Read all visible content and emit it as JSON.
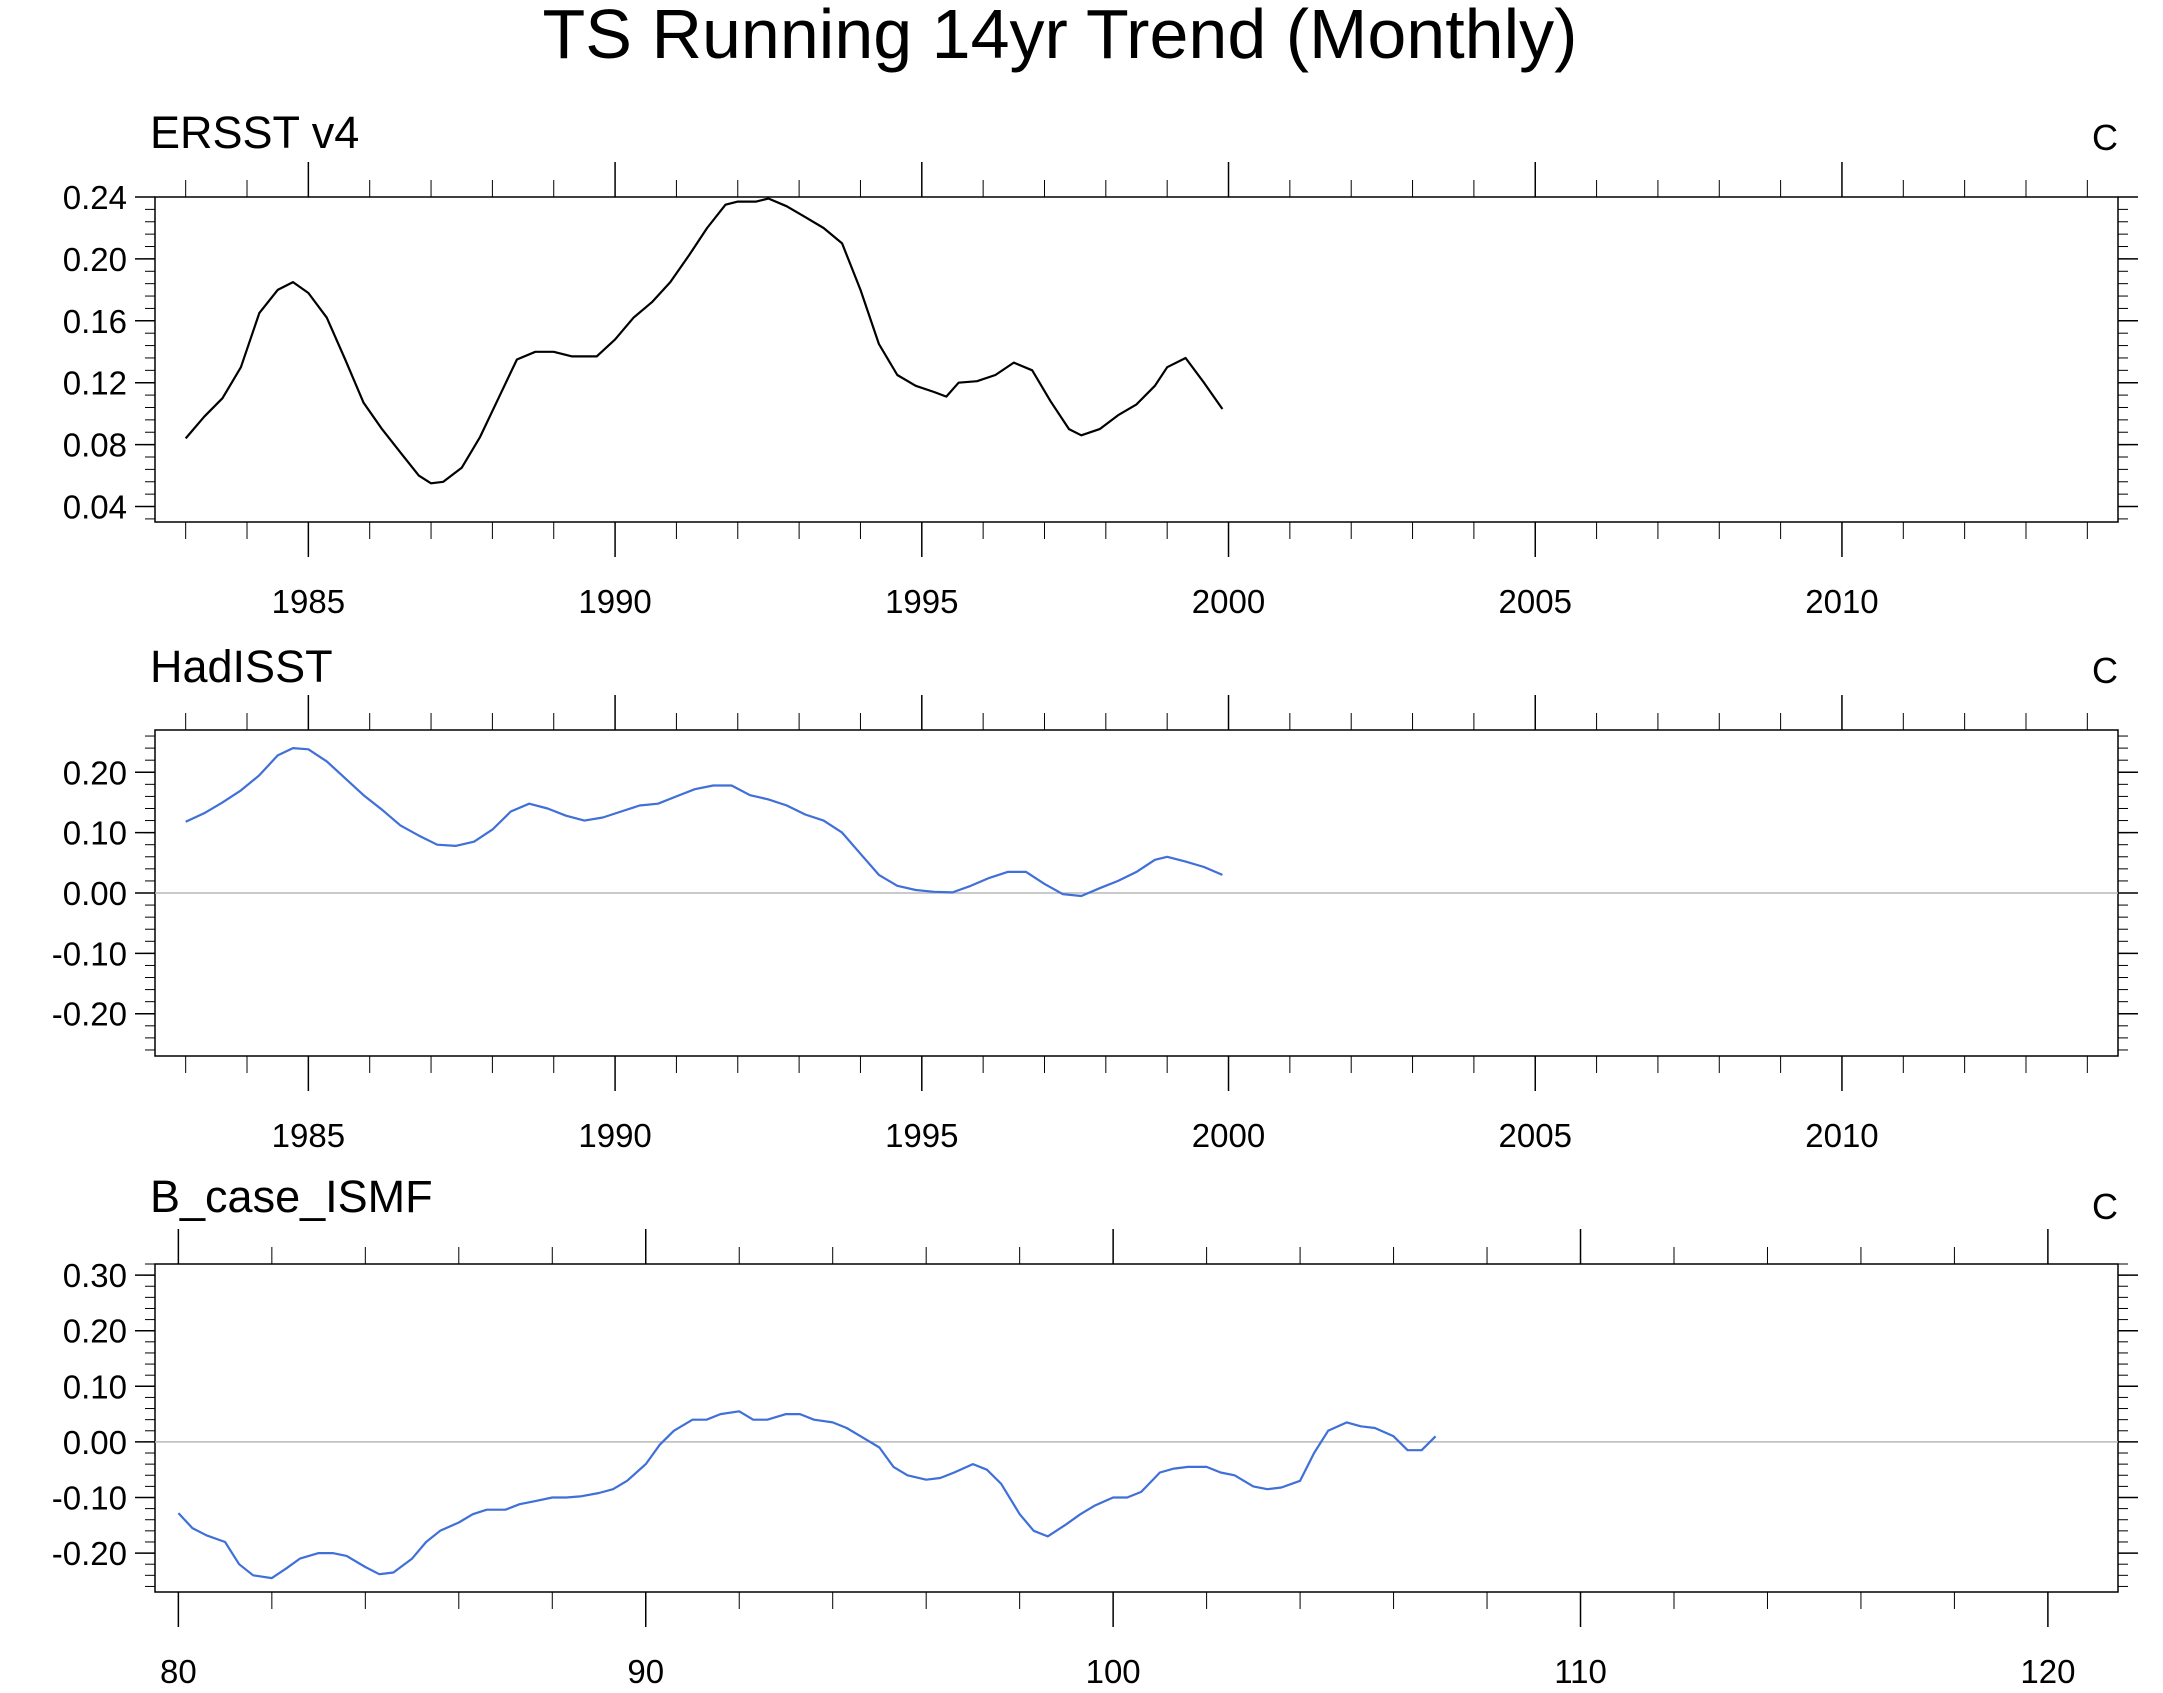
{
  "title": "TS Running 14yr Trend (Monthly)",
  "chart_data": [
    {
      "type": "line",
      "title": "ERSST v4",
      "units": "C",
      "xlim": [
        1982.5,
        2014.5
      ],
      "xticks": [
        1985,
        1990,
        1995,
        2000,
        2005,
        2010
      ],
      "xtick_labels": [
        "1985",
        "1990",
        "1995",
        "2000",
        "2005",
        "2010"
      ],
      "ylim": [
        0.03,
        0.24
      ],
      "yticks": [
        0.04,
        0.08,
        0.12,
        0.16,
        0.2,
        0.24
      ],
      "ytick_labels": [
        "0.04",
        "0.08",
        "0.12",
        "0.16",
        "0.20",
        "0.24"
      ],
      "reference_line": null,
      "series": [
        {
          "color": "#000000",
          "x": [
            1983.0,
            1983.3,
            1983.6,
            1983.9,
            1984.2,
            1984.5,
            1984.75,
            1985.0,
            1985.3,
            1985.6,
            1985.9,
            1986.2,
            1986.5,
            1986.8,
            1987.0,
            1987.2,
            1987.5,
            1987.8,
            1988.1,
            1988.4,
            1988.7,
            1989.0,
            1989.3,
            1989.7,
            1990.0,
            1990.3,
            1990.6,
            1990.9,
            1991.2,
            1991.5,
            1991.8,
            1992.0,
            1992.3,
            1992.5,
            1992.8,
            1993.1,
            1993.4,
            1993.7,
            1994.0,
            1994.3,
            1994.6,
            1994.9,
            1995.2,
            1995.4,
            1995.6,
            1995.9,
            1996.2,
            1996.5,
            1996.8,
            1997.1,
            1997.4,
            1997.6,
            1997.9,
            1998.2,
            1998.5,
            1998.8,
            1999.0,
            1999.3,
            1999.6,
            1999.9
          ],
          "y": [
            0.084,
            0.098,
            0.11,
            0.13,
            0.165,
            0.18,
            0.185,
            0.178,
            0.162,
            0.135,
            0.107,
            0.09,
            0.075,
            0.06,
            0.055,
            0.056,
            0.065,
            0.085,
            0.11,
            0.135,
            0.14,
            0.14,
            0.137,
            0.137,
            0.148,
            0.162,
            0.172,
            0.185,
            0.202,
            0.22,
            0.235,
            0.237,
            0.237,
            0.239,
            0.234,
            0.227,
            0.22,
            0.21,
            0.18,
            0.145,
            0.125,
            0.118,
            0.114,
            0.111,
            0.12,
            0.121,
            0.125,
            0.133,
            0.128,
            0.108,
            0.09,
            0.086,
            0.09,
            0.099,
            0.106,
            0.118,
            0.13,
            0.136,
            0.12,
            0.103
          ]
        }
      ]
    },
    {
      "type": "line",
      "title": "HadISST",
      "units": "C",
      "xlim": [
        1982.5,
        2014.5
      ],
      "xticks": [
        1985,
        1990,
        1995,
        2000,
        2005,
        2010
      ],
      "xtick_labels": [
        "1985",
        "1990",
        "1995",
        "2000",
        "2005",
        "2010"
      ],
      "ylim": [
        -0.27,
        0.27
      ],
      "yticks": [
        -0.2,
        -0.1,
        0.0,
        0.1,
        0.2
      ],
      "ytick_labels": [
        "-0.20",
        "-0.10",
        "0.00",
        "0.10",
        "0.20"
      ],
      "reference_line": 0,
      "series": [
        {
          "color": "#3f6fd8",
          "x": [
            1983.0,
            1983.3,
            1983.6,
            1983.9,
            1984.2,
            1984.5,
            1984.75,
            1985.0,
            1985.3,
            1985.6,
            1985.9,
            1986.2,
            1986.5,
            1986.8,
            1987.1,
            1987.4,
            1987.7,
            1988.0,
            1988.3,
            1988.6,
            1988.9,
            1989.2,
            1989.5,
            1989.8,
            1990.1,
            1990.4,
            1990.7,
            1991.0,
            1991.3,
            1991.6,
            1991.9,
            1992.2,
            1992.5,
            1992.8,
            1993.1,
            1993.4,
            1993.7,
            1994.0,
            1994.3,
            1994.6,
            1994.9,
            1995.2,
            1995.5,
            1995.8,
            1996.1,
            1996.4,
            1996.7,
            1997.0,
            1997.3,
            1997.6,
            1997.9,
            1998.2,
            1998.5,
            1998.8,
            1999.0,
            1999.3,
            1999.6,
            1999.9
          ],
          "y": [
            0.118,
            0.132,
            0.15,
            0.17,
            0.195,
            0.228,
            0.24,
            0.238,
            0.218,
            0.19,
            0.162,
            0.138,
            0.112,
            0.095,
            0.08,
            0.078,
            0.085,
            0.105,
            0.135,
            0.148,
            0.14,
            0.128,
            0.12,
            0.125,
            0.135,
            0.145,
            0.148,
            0.16,
            0.172,
            0.178,
            0.178,
            0.162,
            0.155,
            0.145,
            0.13,
            0.12,
            0.1,
            0.065,
            0.03,
            0.012,
            0.005,
            0.002,
            0.001,
            0.012,
            0.025,
            0.035,
            0.035,
            0.015,
            -0.002,
            -0.005,
            0.008,
            0.02,
            0.035,
            0.055,
            0.06,
            0.052,
            0.043,
            0.03
          ]
        }
      ]
    },
    {
      "type": "line",
      "title": "B_case_ISMF",
      "units": "C",
      "xlim": [
        79.5,
        121.5
      ],
      "xticks": [
        80,
        90,
        100,
        110,
        120
      ],
      "xtick_labels": [
        "80",
        "90",
        "100",
        "110",
        "120"
      ],
      "ylim": [
        -0.27,
        0.32
      ],
      "yticks": [
        -0.2,
        -0.1,
        0.0,
        0.1,
        0.2,
        0.3
      ],
      "ytick_labels": [
        "-0.20",
        "-0.10",
        "0.00",
        "0.10",
        "0.20",
        "0.30"
      ],
      "reference_line": 0,
      "series": [
        {
          "color": "#3f6fd8",
          "x": [
            80.0,
            80.3,
            80.6,
            81.0,
            81.3,
            81.6,
            82.0,
            82.3,
            82.6,
            83.0,
            83.3,
            83.6,
            84.0,
            84.3,
            84.6,
            85.0,
            85.3,
            85.6,
            86.0,
            86.3,
            86.6,
            87.0,
            87.3,
            87.6,
            88.0,
            88.3,
            88.6,
            89.0,
            89.3,
            89.6,
            90.0,
            90.3,
            90.6,
            91.0,
            91.3,
            91.6,
            92.0,
            92.3,
            92.6,
            93.0,
            93.3,
            93.6,
            94.0,
            94.3,
            94.6,
            95.0,
            95.3,
            95.6,
            96.0,
            96.3,
            96.6,
            97.0,
            97.3,
            97.6,
            98.0,
            98.3,
            98.6,
            99.0,
            99.3,
            99.6,
            100.0,
            100.3,
            100.6,
            101.0,
            101.3,
            101.6,
            102.0,
            102.3,
            102.6,
            103.0,
            103.3,
            103.6,
            104.0,
            104.3,
            104.6,
            105.0,
            105.3,
            105.6,
            106.0,
            106.3,
            106.6,
            106.9
          ],
          "y": [
            -0.128,
            -0.155,
            -0.168,
            -0.18,
            -0.22,
            -0.24,
            -0.245,
            -0.228,
            -0.21,
            -0.2,
            -0.2,
            -0.205,
            -0.225,
            -0.238,
            -0.235,
            -0.21,
            -0.18,
            -0.16,
            -0.145,
            -0.13,
            -0.122,
            -0.122,
            -0.112,
            -0.107,
            -0.1,
            -0.1,
            -0.098,
            -0.092,
            -0.085,
            -0.07,
            -0.04,
            -0.005,
            0.02,
            0.04,
            0.04,
            0.05,
            0.055,
            0.04,
            0.04,
            0.05,
            0.05,
            0.04,
            0.035,
            0.025,
            0.01,
            -0.01,
            -0.045,
            -0.06,
            -0.068,
            -0.065,
            -0.055,
            -0.04,
            -0.05,
            -0.075,
            -0.13,
            -0.16,
            -0.17,
            -0.148,
            -0.13,
            -0.115,
            -0.1,
            -0.1,
            -0.09,
            -0.055,
            -0.048,
            -0.045,
            -0.045,
            -0.055,
            -0.06,
            -0.08,
            -0.085,
            -0.082,
            -0.07,
            -0.02,
            0.02,
            0.035,
            0.028,
            0.025,
            0.01,
            -0.015,
            -0.015,
            0.01
          ]
        }
      ]
    }
  ]
}
